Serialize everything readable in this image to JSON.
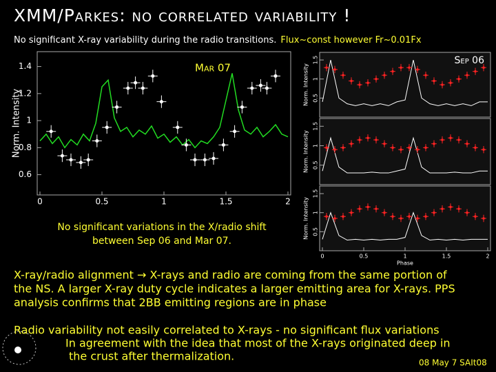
{
  "title": "XMM/Parkes: no correlated variability !",
  "subtitle": {
    "text": "No significant X-ray variability during the radio transitions.",
    "highlight": "Flux~const however Fr~0.01Fx"
  },
  "chart_data": [
    {
      "type": "scatter",
      "annotation": "Mar 07",
      "y_label": "Norm. Intensity",
      "xlim": [
        0,
        2
      ],
      "xticks": [
        0,
        0.5,
        1,
        1.5,
        2
      ],
      "ylim": [
        0.45,
        1.51
      ],
      "yticks": [
        0.6,
        0.8,
        1,
        1.2,
        1.4
      ],
      "series": [
        {
          "kind": "line",
          "color": "#22dd22",
          "x": [
            0,
            0.05,
            0.1,
            0.15,
            0.2,
            0.25,
            0.3,
            0.35,
            0.4,
            0.45,
            0.5,
            0.55,
            0.6,
            0.65,
            0.7,
            0.75,
            0.8,
            0.85,
            0.9,
            0.95,
            1,
            1.05,
            1.1,
            1.15,
            1.2,
            1.25,
            1.3,
            1.35,
            1.4,
            1.45,
            1.5,
            1.55,
            1.6,
            1.65,
            1.7,
            1.75,
            1.8,
            1.85,
            1.9,
            1.95,
            2
          ],
          "values": [
            0.85,
            0.9,
            0.83,
            0.88,
            0.8,
            0.86,
            0.82,
            0.9,
            0.85,
            0.98,
            1.25,
            1.3,
            1.02,
            0.92,
            0.95,
            0.88,
            0.93,
            0.9,
            0.96,
            0.87,
            0.9,
            0.84,
            0.88,
            0.82,
            0.86,
            0.8,
            0.85,
            0.83,
            0.88,
            0.95,
            1.15,
            1.35,
            1.08,
            0.93,
            0.9,
            0.95,
            0.88,
            0.92,
            0.97,
            0.9,
            0.88
          ]
        },
        {
          "kind": "points",
          "color": "#ffffff",
          "x": [
            0.09,
            0.18,
            0.25,
            0.33,
            0.39,
            0.46,
            0.54,
            0.62,
            0.71,
            0.77,
            0.83,
            0.91,
            0.98,
            1.11,
            1.18,
            1.25,
            1.33,
            1.4,
            1.48,
            1.57,
            1.63,
            1.71,
            1.78,
            1.83,
            1.9
          ],
          "values": [
            0.92,
            0.74,
            0.71,
            0.69,
            0.71,
            0.85,
            0.95,
            1.1,
            1.24,
            1.28,
            1.24,
            1.33,
            1.14,
            0.95,
            0.82,
            0.71,
            0.71,
            0.72,
            0.82,
            0.92,
            1.1,
            1.24,
            1.26,
            1.24,
            1.33
          ]
        }
      ]
    },
    {
      "type": "scatter",
      "annotation": "Sep 06",
      "y_label": "Norm. Intensity",
      "xlim": [
        0,
        2
      ],
      "ylim": [
        0,
        1.7
      ],
      "yticks": [
        0.5,
        1,
        1.5
      ],
      "series": [
        {
          "kind": "line",
          "color": "#ffffff",
          "x": [
            0,
            0.1,
            0.2,
            0.3,
            0.4,
            0.5,
            0.6,
            0.7,
            0.8,
            0.9,
            1,
            1.1,
            1.2,
            1.3,
            1.4,
            1.5,
            1.6,
            1.7,
            1.8,
            1.9,
            2
          ],
          "values": [
            0.4,
            1.5,
            0.5,
            0.35,
            0.3,
            0.35,
            0.3,
            0.35,
            0.3,
            0.4,
            0.45,
            1.5,
            0.5,
            0.35,
            0.3,
            0.35,
            0.3,
            0.35,
            0.3,
            0.4,
            0.4
          ]
        },
        {
          "kind": "points",
          "color": "#ff2222",
          "x": [
            0.05,
            0.15,
            0.25,
            0.35,
            0.45,
            0.55,
            0.65,
            0.75,
            0.85,
            0.95,
            1.05,
            1.15,
            1.25,
            1.35,
            1.45,
            1.55,
            1.65,
            1.75,
            1.85,
            1.95
          ],
          "values": [
            1.3,
            1.25,
            1.1,
            0.95,
            0.85,
            0.9,
            1,
            1.1,
            1.2,
            1.3,
            1.3,
            1.25,
            1.1,
            0.95,
            0.85,
            0.9,
            1,
            1.1,
            1.2,
            1.3
          ]
        }
      ]
    },
    {
      "type": "scatter",
      "y_label": "Norm. Intensity",
      "xlim": [
        0,
        2
      ],
      "ylim": [
        0,
        1.7
      ],
      "yticks": [
        0.5,
        1,
        1.5
      ],
      "series": [
        {
          "kind": "line",
          "color": "#ffffff",
          "x": [
            0,
            0.1,
            0.2,
            0.3,
            0.4,
            0.5,
            0.6,
            0.7,
            0.8,
            0.9,
            1,
            1.1,
            1.2,
            1.3,
            1.4,
            1.5,
            1.6,
            1.7,
            1.8,
            1.9,
            2
          ],
          "values": [
            0.35,
            1.2,
            0.45,
            0.3,
            0.3,
            0.3,
            0.32,
            0.3,
            0.3,
            0.35,
            0.4,
            1.2,
            0.45,
            0.3,
            0.3,
            0.3,
            0.32,
            0.3,
            0.3,
            0.35,
            0.35
          ]
        },
        {
          "kind": "points",
          "color": "#ff2222",
          "x": [
            0.05,
            0.15,
            0.25,
            0.35,
            0.45,
            0.55,
            0.65,
            0.75,
            0.85,
            0.95,
            1.05,
            1.15,
            1.25,
            1.35,
            1.45,
            1.55,
            1.65,
            1.75,
            1.85,
            1.95
          ],
          "values": [
            0.95,
            0.9,
            0.95,
            1.05,
            1.15,
            1.2,
            1.15,
            1.05,
            0.95,
            0.9,
            0.95,
            0.9,
            0.95,
            1.05,
            1.15,
            1.2,
            1.15,
            1.05,
            0.95,
            0.9
          ]
        }
      ]
    },
    {
      "type": "scatter",
      "y_label": "Norm. Intensity",
      "x_label": "Phase",
      "xlim": [
        0,
        2
      ],
      "xticks": [
        0,
        0.5,
        1,
        1.5,
        2
      ],
      "ylim": [
        0,
        1.7
      ],
      "yticks": [
        0.5,
        1,
        1.5
      ],
      "series": [
        {
          "kind": "line",
          "color": "#ffffff",
          "x": [
            0,
            0.1,
            0.2,
            0.3,
            0.4,
            0.5,
            0.6,
            0.7,
            0.8,
            0.9,
            1,
            1.1,
            1.2,
            1.3,
            1.4,
            1.5,
            1.6,
            1.7,
            1.8,
            1.9,
            2
          ],
          "values": [
            0.3,
            1,
            0.4,
            0.28,
            0.3,
            0.28,
            0.3,
            0.28,
            0.3,
            0.3,
            0.35,
            1,
            0.4,
            0.28,
            0.3,
            0.28,
            0.3,
            0.28,
            0.3,
            0.3,
            0.3
          ]
        },
        {
          "kind": "points",
          "color": "#ff2222",
          "x": [
            0.05,
            0.15,
            0.25,
            0.35,
            0.45,
            0.55,
            0.65,
            0.75,
            0.85,
            0.95,
            1.05,
            1.15,
            1.25,
            1.35,
            1.45,
            1.55,
            1.65,
            1.75,
            1.85,
            1.95
          ],
          "values": [
            0.9,
            0.85,
            0.9,
            1,
            1.1,
            1.15,
            1.1,
            1,
            0.9,
            0.85,
            0.9,
            0.85,
            0.9,
            1,
            1.1,
            1.15,
            1.1,
            1,
            0.9,
            0.85
          ]
        }
      ]
    }
  ],
  "caption": [
    "No significant variations in the X/radio shift",
    "between Sep 06 and Mar 07."
  ],
  "paragraphs": [
    [
      "X-ray/radio alignment → X-rays and radio are coming from the same portion of",
      "the NS. A larger X-ray duty cycle indicates a larger emitting area for X-rays. PPS",
      "analysis confirms that 2BB emitting regions are in phase"
    ],
    [
      "Radio variability not easily correlated to X-rays -  no significant flux variations",
      "In agreement with the idea that most of the X-rays originated  deep in",
      "the crust after thermalization."
    ]
  ],
  "footer": "08 May 7  SAIt08"
}
